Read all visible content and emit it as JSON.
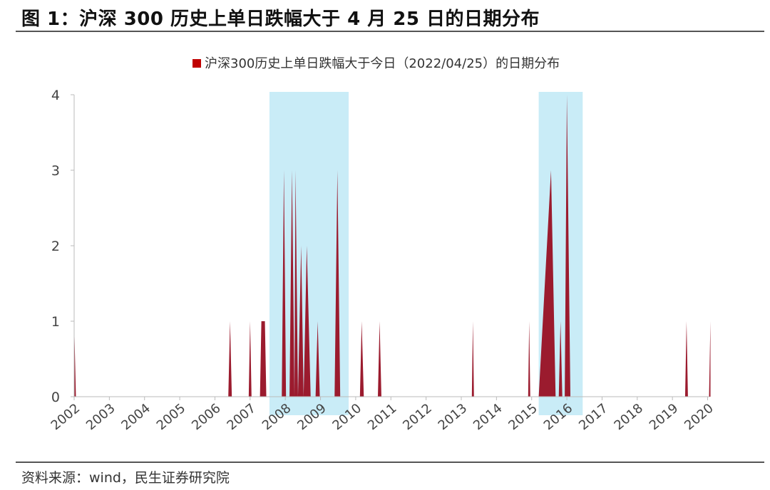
{
  "figure": {
    "title": "图 1：沪深 300 历史上单日跌幅大于 4 月 25 日的日期分布",
    "source": "资料来源：wind，民生证券研究院"
  },
  "chart_data": {
    "type": "area",
    "legend": "沪深300历史上单日跌幅大于今日（2022/04/25）的日期分布",
    "legend_position": "top-center",
    "series": [
      {
        "name": "沪深300历史上单日跌幅大于今日（2022/04/25）的日期分布",
        "color": "#9b1b2e",
        "points": [
          [
            2002.0,
            1
          ],
          [
            2002.05,
            0
          ],
          [
            2006.38,
            0
          ],
          [
            2006.43,
            1
          ],
          [
            2006.48,
            0
          ],
          [
            2006.96,
            0
          ],
          [
            2007.0,
            1
          ],
          [
            2007.04,
            0
          ],
          [
            2007.28,
            0
          ],
          [
            2007.32,
            1
          ],
          [
            2007.42,
            1
          ],
          [
            2007.46,
            0
          ],
          [
            2007.9,
            0
          ],
          [
            2007.96,
            3
          ],
          [
            2008.02,
            0
          ],
          [
            2008.12,
            0
          ],
          [
            2008.19,
            3
          ],
          [
            2008.26,
            0
          ],
          [
            2008.29,
            3
          ],
          [
            2008.36,
            0
          ],
          [
            2008.45,
            2
          ],
          [
            2008.52,
            0
          ],
          [
            2008.61,
            2
          ],
          [
            2008.72,
            0
          ],
          [
            2008.86,
            0
          ],
          [
            2008.92,
            1
          ],
          [
            2008.98,
            0
          ],
          [
            2009.4,
            0
          ],
          [
            2009.48,
            3
          ],
          [
            2009.56,
            0
          ],
          [
            2010.12,
            0
          ],
          [
            2010.17,
            1
          ],
          [
            2010.23,
            0
          ],
          [
            2010.63,
            0
          ],
          [
            2010.68,
            1
          ],
          [
            2010.73,
            0
          ],
          [
            2013.3,
            0
          ],
          [
            2013.33,
            1
          ],
          [
            2013.36,
            0
          ],
          [
            2014.9,
            0
          ],
          [
            2014.93,
            1
          ],
          [
            2014.96,
            0
          ],
          [
            2015.2,
            0
          ],
          [
            2015.55,
            3
          ],
          [
            2015.68,
            0
          ],
          [
            2015.77,
            0
          ],
          [
            2015.82,
            1
          ],
          [
            2015.87,
            0
          ],
          [
            2015.94,
            0
          ],
          [
            2016.0,
            4
          ],
          [
            2016.1,
            0
          ],
          [
            2019.36,
            0
          ],
          [
            2019.4,
            1
          ],
          [
            2019.44,
            0
          ],
          [
            2020.04,
            0
          ],
          [
            2020.08,
            1
          ]
        ]
      }
    ],
    "highlight_ranges": [
      [
        2007.55,
        2009.8
      ],
      [
        2015.2,
        2016.45
      ]
    ],
    "highlight_color": "#c9ecf7",
    "x_ticks": [
      "2002",
      "2003",
      "2004",
      "2005",
      "2006",
      "2007",
      "2008",
      "2009",
      "2010",
      "2011",
      "2012",
      "2013",
      "2014",
      "2015",
      "2016",
      "2017",
      "2018",
      "2019",
      "2020"
    ],
    "y_ticks": [
      "0",
      "1",
      "2",
      "3",
      "4"
    ],
    "xlim": [
      2002,
      2020.05
    ],
    "ylim": [
      0,
      4
    ],
    "grid": false
  }
}
